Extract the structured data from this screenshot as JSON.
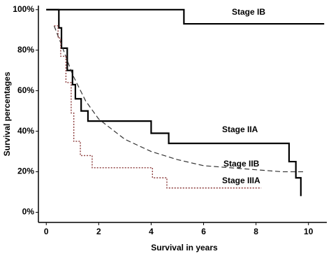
{
  "chart_data": {
    "type": "line",
    "x_label": "Survival in years",
    "y_label": "Survival percentages",
    "xlim": [
      -0.3,
      10.7
    ],
    "xticks": [
      0,
      2,
      4,
      6,
      8,
      10
    ],
    "ylim": [
      -5,
      102
    ],
    "yticks": [
      {
        "value": 0,
        "label": "0%"
      },
      {
        "value": 20,
        "label": "20%"
      },
      {
        "value": 40,
        "label": "40%"
      },
      {
        "value": 60,
        "label": "60%"
      },
      {
        "value": 80,
        "label": "80%"
      },
      {
        "value": 100,
        "label": "100%"
      }
    ],
    "series": [
      {
        "name": "Stage IB",
        "color": "#000000",
        "step": true,
        "dash": "solid",
        "x": [
          0,
          5.25,
          10.6
        ],
        "values": [
          100,
          93,
          93
        ]
      },
      {
        "name": "Stage IIA",
        "color": "#000000",
        "step": true,
        "dash": "solid",
        "x": [
          0,
          0.48,
          0.58,
          0.8,
          1.0,
          1.11,
          1.33,
          1.59,
          4.0,
          4.67,
          9.26,
          9.52,
          9.71
        ],
        "values": [
          100,
          91,
          81,
          70,
          63,
          56,
          50,
          45,
          39,
          34,
          25,
          17,
          8
        ]
      },
      {
        "name": "Stage IIB",
        "color": "#333333",
        "step": false,
        "dash": "dashed",
        "x": [
          0.3,
          0.6,
          1.0,
          1.5,
          2,
          3,
          4,
          5,
          6,
          7,
          8,
          9,
          9.8
        ],
        "values": [
          92,
          82,
          68,
          55,
          46,
          36,
          30,
          26,
          23,
          22,
          21,
          20,
          20
        ]
      },
      {
        "name": "Stage IIIA",
        "color": "#8b3a3a",
        "step": true,
        "dash": "dotted",
        "x": [
          0.3,
          0.45,
          0.55,
          0.75,
          0.95,
          1.05,
          1.3,
          1.75,
          4.05,
          4.6,
          8.2
        ],
        "values": [
          92,
          86,
          77,
          64,
          49,
          35,
          28,
          22,
          17,
          12,
          12
        ]
      }
    ]
  }
}
